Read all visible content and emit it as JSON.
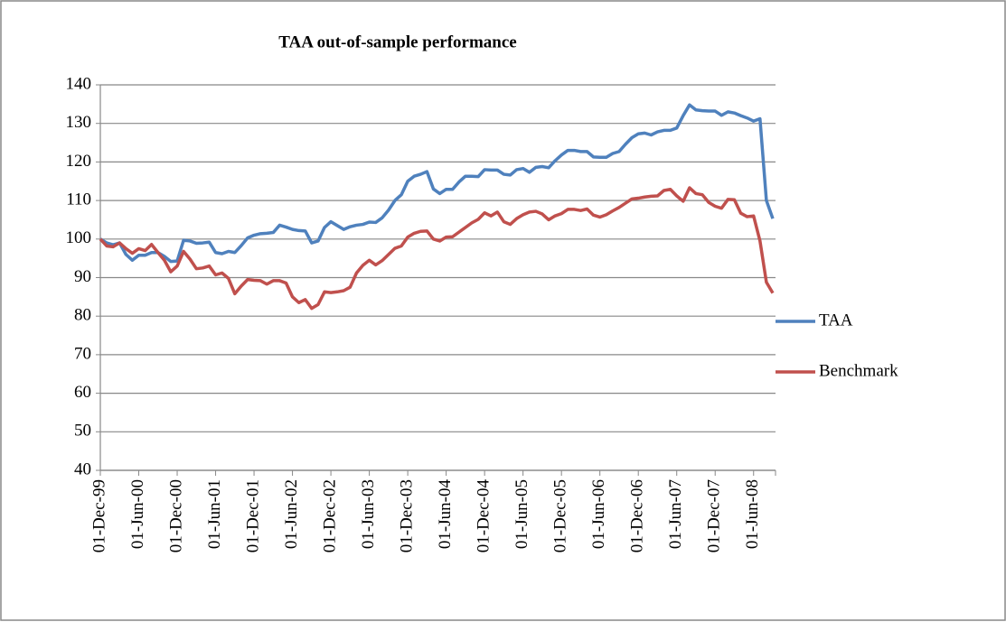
{
  "chart_data": {
    "type": "line",
    "title": "TAA out-of-sample performance",
    "categories": [
      "01-Dec-99",
      null,
      null,
      null,
      null,
      null,
      "01-Jun-00",
      null,
      null,
      null,
      null,
      null,
      "01-Dec-00",
      null,
      null,
      null,
      null,
      null,
      "01-Jun-01",
      null,
      null,
      null,
      null,
      null,
      "01-Dec-01",
      null,
      null,
      null,
      null,
      null,
      "01-Jun-02",
      null,
      null,
      null,
      null,
      null,
      "01-Dec-02",
      null,
      null,
      null,
      null,
      null,
      "01-Jun-03",
      null,
      null,
      null,
      null,
      null,
      "01-Dec-03",
      null,
      null,
      null,
      null,
      null,
      "01-Jun-04",
      null,
      null,
      null,
      null,
      null,
      "01-Dec-04",
      null,
      null,
      null,
      null,
      null,
      "01-Jun-05",
      null,
      null,
      null,
      null,
      null,
      "01-Dec-05",
      null,
      null,
      null,
      null,
      null,
      "01-Jun-06",
      null,
      null,
      null,
      null,
      null,
      "01-Dec-06",
      null,
      null,
      null,
      null,
      null,
      "01-Jun-07",
      null,
      null,
      null,
      null,
      null,
      "01-Dec-07",
      null,
      null,
      null,
      null,
      null,
      "01-Jun-08",
      null,
      null,
      null
    ],
    "series": [
      {
        "name": "TAA",
        "color": "#4f81bd",
        "values": [
          100,
          99,
          98.5,
          99,
          96,
          94.5,
          95.8,
          95.8,
          96.5,
          96.5,
          95.5,
          94.2,
          94.3,
          99.7,
          99.5,
          98.9,
          99,
          99.2,
          96.5,
          96.2,
          96.8,
          96.5,
          98.3,
          100.3,
          101,
          101.4,
          101.5,
          101.7,
          103.6,
          103.1,
          102.5,
          102.2,
          102.1,
          99,
          99.5,
          103,
          104.5,
          103.5,
          102.5,
          103.2,
          103.6,
          103.8,
          104.4,
          104.3,
          105.5,
          107.5,
          110,
          111.5,
          115,
          116.3,
          116.8,
          117.5,
          113,
          111.8,
          112.9,
          112.9,
          114.8,
          116.3,
          116.3,
          116.2,
          118,
          117.9,
          117.9,
          116.8,
          116.6,
          118,
          118.3,
          117.3,
          118.6,
          118.8,
          118.5,
          120.3,
          121.8,
          123,
          123,
          122.7,
          122.7,
          121.3,
          121.2,
          121.2,
          122.2,
          122.7,
          124.6,
          126.3,
          127.3,
          127.5,
          127,
          127.8,
          128.2,
          128.2,
          128.8,
          132,
          134.8,
          133.5,
          133.3,
          133.2,
          133.2,
          132.1,
          133,
          132.7,
          132,
          131.4,
          130.6,
          131.2,
          110,
          105.3
        ]
      },
      {
        "name": "Benchmark",
        "color": "#c0504d",
        "values": [
          100,
          98.2,
          98,
          99,
          97.5,
          96.3,
          97.5,
          97,
          98.6,
          96.5,
          94.5,
          91.5,
          93,
          96.8,
          94.8,
          92.3,
          92.5,
          93,
          90.7,
          91.2,
          89.8,
          85.8,
          87.8,
          89.5,
          89.3,
          89.2,
          88.3,
          89.2,
          89.2,
          88.6,
          85,
          83.5,
          84.3,
          82,
          83,
          86.3,
          86.1,
          86.3,
          86.6,
          87.5,
          91.2,
          93.2,
          94.5,
          93.3,
          94.4,
          96,
          97.6,
          98.2,
          100.5,
          101.5,
          102,
          102.1,
          100,
          99.5,
          100.5,
          100.6,
          101.8,
          103,
          104.2,
          105.1,
          106.8,
          106,
          107,
          104.5,
          103.8,
          105.3,
          106.3,
          107,
          107.2,
          106.5,
          105,
          106,
          106.6,
          107.7,
          107.7,
          107.4,
          107.8,
          106.2,
          105.7,
          106.3,
          107.3,
          108.2,
          109.3,
          110.4,
          110.6,
          110.9,
          111.1,
          111.2,
          112.6,
          112.9,
          111.2,
          109.8,
          113.3,
          111.8,
          111.5,
          109.5,
          108.5,
          108,
          110.3,
          110.2,
          106.7,
          105.8,
          106,
          99.5,
          88.8,
          86
        ]
      }
    ],
    "ylim": [
      40,
      140
    ],
    "yticks": [
      40,
      50,
      60,
      70,
      80,
      90,
      100,
      110,
      120,
      130,
      140
    ],
    "grid": true,
    "legend": "right"
  }
}
